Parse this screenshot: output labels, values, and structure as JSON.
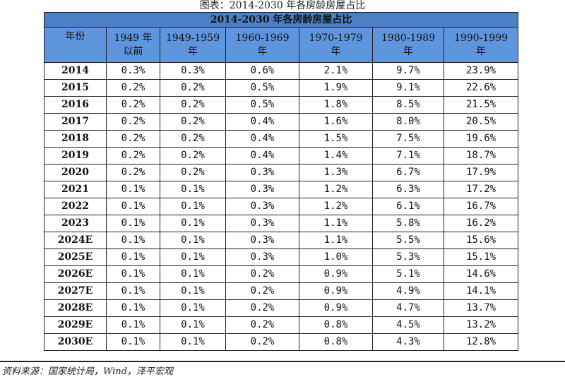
{
  "caption": "图表：2014-2030 年各房龄房屋占比",
  "table_title": "2014-2030 年各房龄房屋占比",
  "headers": [
    "年份",
    "1949 年\n以前",
    "1949-1959\n年",
    "1960-1969\n年",
    "1970-1979\n年",
    "1980-1989\n年",
    "1990-1999\n年"
  ],
  "rows": [
    [
      "2014",
      "0.3%",
      "0.3%",
      "0.6%",
      "2.1%",
      "9.7%",
      "23.9%"
    ],
    [
      "2015",
      "0.2%",
      "0.2%",
      "0.5%",
      "1.9%",
      "9.1%",
      "22.6%"
    ],
    [
      "2016",
      "0.2%",
      "0.2%",
      "0.5%",
      "1.8%",
      "8.5%",
      "21.5%"
    ],
    [
      "2017",
      "0.2%",
      "0.2%",
      "0.4%",
      "1.6%",
      "8.0%",
      "20.5%"
    ],
    [
      "2018",
      "0.2%",
      "0.2%",
      "0.4%",
      "1.5%",
      "7.5%",
      "19.6%"
    ],
    [
      "2019",
      "0.2%",
      "0.2%",
      "0.4%",
      "1.4%",
      "7.1%",
      "18.7%"
    ],
    [
      "2020",
      "0.2%",
      "0.2%",
      "0.3%",
      "1.3%",
      "6.7%",
      "17.9%"
    ],
    [
      "2021",
      "0.1%",
      "0.1%",
      "0.3%",
      "1.2%",
      "6.3%",
      "17.2%"
    ],
    [
      "2022",
      "0.1%",
      "0.1%",
      "0.3%",
      "1.2%",
      "6.1%",
      "16.7%"
    ],
    [
      "2023",
      "0.1%",
      "0.1%",
      "0.3%",
      "1.1%",
      "5.8%",
      "16.2%"
    ],
    [
      "2024E",
      "0.1%",
      "0.1%",
      "0.3%",
      "1.1%",
      "5.5%",
      "15.6%"
    ],
    [
      "2025E",
      "0.1%",
      "0.1%",
      "0.3%",
      "1.0%",
      "5.3%",
      "15.1%"
    ],
    [
      "2026E",
      "0.1%",
      "0.1%",
      "0.2%",
      "0.9%",
      "5.1%",
      "14.6%"
    ],
    [
      "2027E",
      "0.1%",
      "0.1%",
      "0.2%",
      "0.9%",
      "4.9%",
      "14.1%"
    ],
    [
      "2028E",
      "0.1%",
      "0.1%",
      "0.2%",
      "0.9%",
      "4.7%",
      "13.7%"
    ],
    [
      "2029E",
      "0.1%",
      "0.1%",
      "0.2%",
      "0.8%",
      "4.5%",
      "13.2%"
    ],
    [
      "2030E",
      "0.1%",
      "0.1%",
      "0.2%",
      "0.8%",
      "4.3%",
      "12.8%"
    ]
  ],
  "source": "资料来源：国家统计局，Wind，泽平宏观",
  "colors": {
    "title_bg": "#4d7fc4",
    "header_bg": "#5f95dd",
    "border": "#1f1f1f"
  }
}
